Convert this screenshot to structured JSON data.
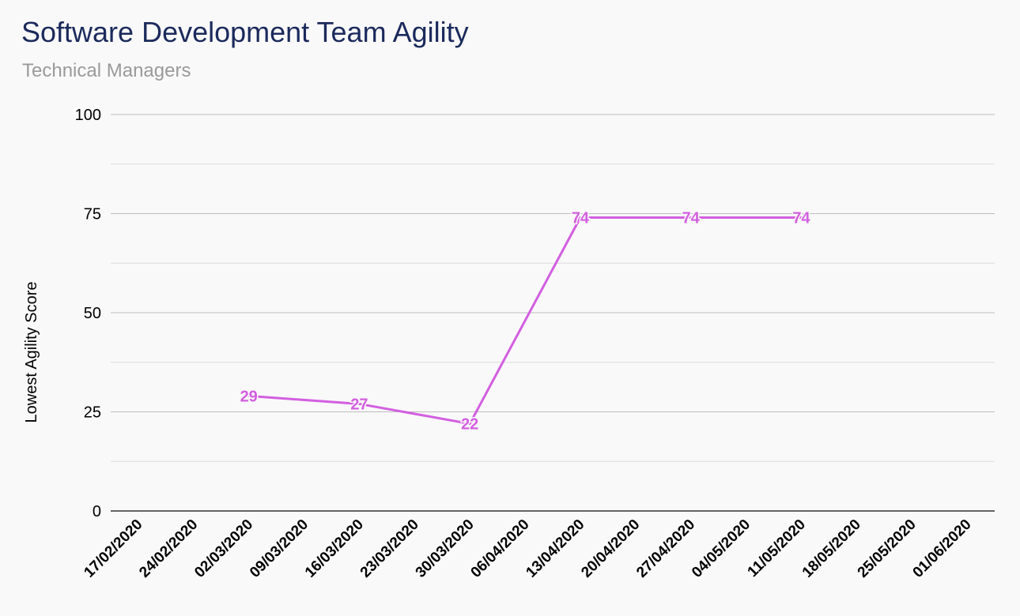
{
  "chart_data": {
    "type": "line",
    "title": "Software Development Team Agility",
    "subtitle": "Technical Managers",
    "xlabel": "",
    "ylabel": "Lowest Agility Score",
    "ylim": [
      0,
      100
    ],
    "yticks": [
      "0",
      "25",
      "50",
      "75",
      "100"
    ],
    "grid": true,
    "categories": [
      "17/02/2020",
      "24/02/2020",
      "02/03/2020",
      "09/03/2020",
      "16/03/2020",
      "23/03/2020",
      "30/03/2020",
      "06/04/2020",
      "13/04/2020",
      "20/04/2020",
      "27/04/2020",
      "04/05/2020",
      "11/05/2020",
      "18/05/2020",
      "25/05/2020",
      "01/06/2020"
    ],
    "series": [
      {
        "values": [
          null,
          null,
          29,
          null,
          27,
          null,
          22,
          null,
          74,
          null,
          74,
          null,
          74,
          null,
          null,
          null
        ],
        "color": "#d35fe0",
        "data_labels": true
      }
    ]
  }
}
